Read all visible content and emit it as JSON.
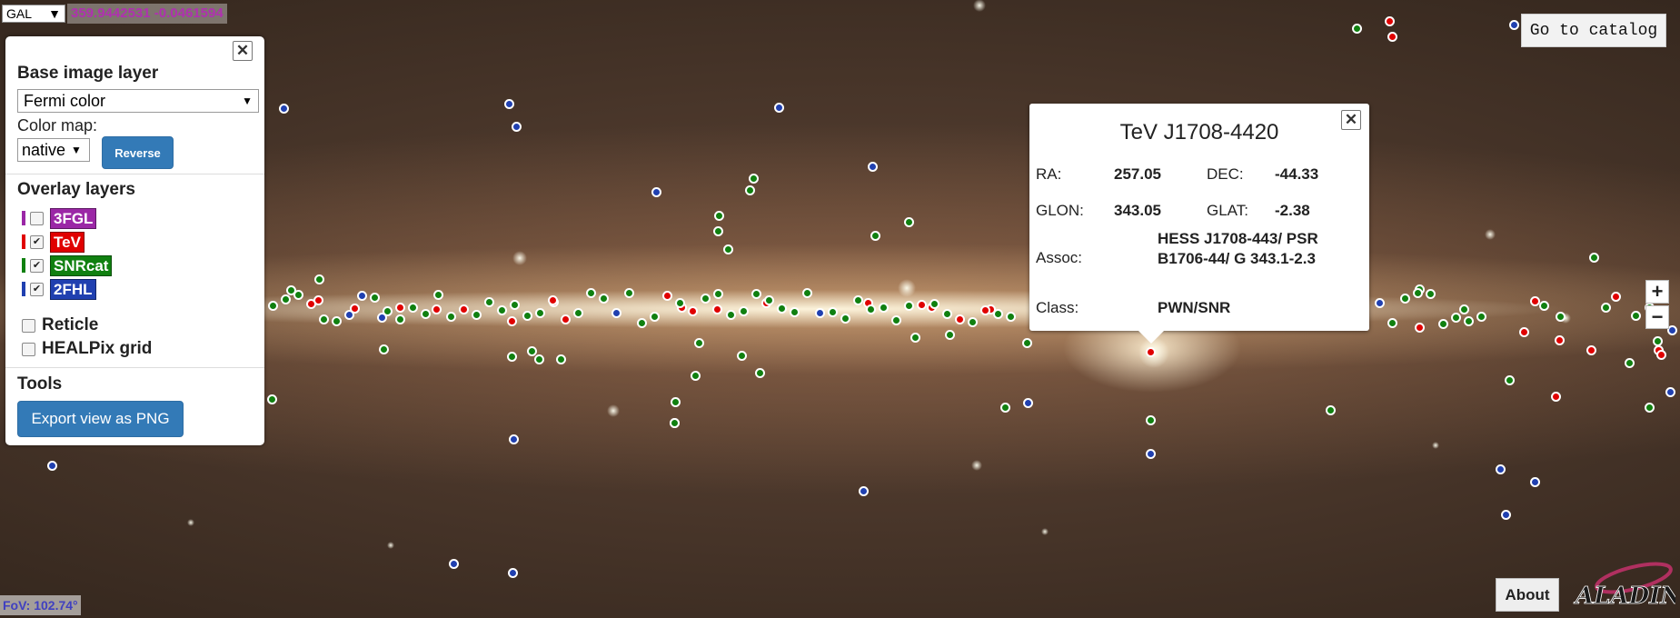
{
  "view": {
    "frame": "GAL",
    "coordinates": "359.9442531 -0.0461594",
    "fov_label": "FoV: 102.74°"
  },
  "panel": {
    "base_layer_heading": "Base image layer",
    "base_layer_value": "Fermi color",
    "color_map_label": "Color map:",
    "color_map_value": "native",
    "reverse_label": "Reverse",
    "overlay_heading": "Overlay layers",
    "overlays": [
      {
        "label": "3FGL",
        "color": "#9b27a6",
        "checked": false
      },
      {
        "label": "TeV",
        "color": "#e00000",
        "checked": true
      },
      {
        "label": "SNRcat",
        "color": "#108010",
        "checked": true
      },
      {
        "label": "2FHL",
        "color": "#2040b0",
        "checked": true
      }
    ],
    "reticle_label": "Reticle",
    "healpix_label": "HEALPix grid",
    "tools_heading": "Tools",
    "export_label": "Export view as PNG"
  },
  "popup": {
    "title": "TeV J1708-4420",
    "ra_label": "RA:",
    "ra_value": "257.05",
    "dec_label": "DEC:",
    "dec_value": "-44.33",
    "glon_label": "GLON:",
    "glon_value": "343.05",
    "glat_label": "GLAT:",
    "glat_value": "-2.38",
    "assoc_label": "Assoc:",
    "assoc_value": "HESS J1708-443/ PSR B1706-44/ G 343.1-2.3",
    "class_label": "Class:",
    "class_value": "PWN/SNR"
  },
  "controls": {
    "goto_catalog": "Go to catalog",
    "zoom_in": "+",
    "zoom_out": "−",
    "about": "About",
    "logo_text": "ALADIN"
  },
  "icons": {
    "close": "close-icon",
    "dropdown": "chevron-down-icon"
  },
  "colors": {
    "tev": "#e00000",
    "snr": "#108010",
    "fhl": "#2040b0",
    "button_blue": "#337ab7"
  }
}
